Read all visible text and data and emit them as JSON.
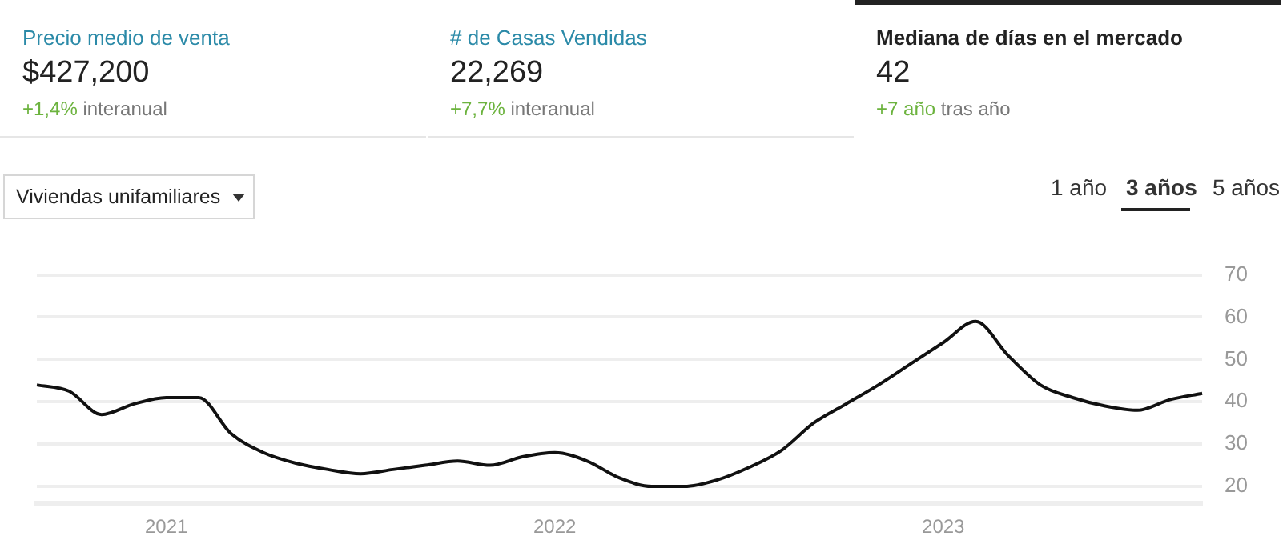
{
  "chart_data": {
    "type": "line",
    "title": "Mediana de días en el mercado",
    "annotations": [
      "Precio medio de venta",
      "$427,200",
      "+1,4%",
      "interanual",
      "# de Casas Vendidas",
      "22,269",
      "+7,7%",
      "interanual",
      "42",
      "+7 año",
      "tras año",
      "Viviendas unifamiliares",
      "1 año",
      "3 años",
      "5 años"
    ],
    "categories": [
      null,
      null,
      null,
      null,
      "2021",
      null,
      null,
      null,
      null,
      null,
      null,
      null,
      null,
      null,
      null,
      null,
      "2022",
      null,
      null,
      null,
      null,
      null,
      null,
      null,
      null,
      null,
      null,
      null,
      "2023",
      null,
      null,
      null,
      null,
      null,
      null,
      null,
      null
    ],
    "series": [
      {
        "color": "#111111",
        "values": [
          44,
          42.5,
          37,
          39.5,
          41,
          41,
          32.5,
          28,
          25.5,
          24,
          23,
          24,
          25,
          26,
          25,
          27,
          28,
          26,
          22,
          20,
          20,
          21.5,
          24.5,
          28.5,
          35,
          39.5,
          44,
          49,
          54,
          59,
          51,
          44,
          41,
          39,
          38,
          40.5,
          42
        ]
      }
    ],
    "ylim": [
      16,
      70
    ],
    "yticks": [
      20,
      30,
      40,
      50,
      60,
      70
    ],
    "grid": "y",
    "marker": "none",
    "line_style": "solid"
  }
}
